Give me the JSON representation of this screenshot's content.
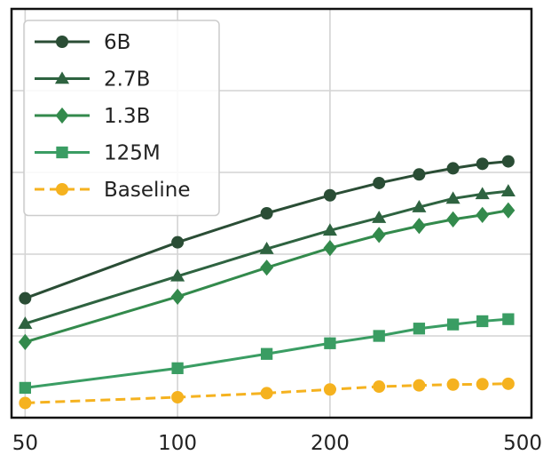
{
  "chart_data": {
    "type": "line",
    "xscale": "log",
    "xlim": [
      47,
      500
    ],
    "x_ticks": [
      50,
      100,
      200,
      500
    ],
    "x_tick_labels": [
      "50",
      "100",
      "200",
      "500"
    ],
    "ylim": [
      0,
      100
    ],
    "y_gridlines": [
      20,
      40,
      60,
      80
    ],
    "grid": true,
    "legend_position": "top-left",
    "series": [
      {
        "name": "6B",
        "color": "#2a4d35",
        "marker": "circle",
        "dash": "solid",
        "points": [
          [
            50,
            29.2
          ],
          [
            100,
            42.9
          ],
          [
            150,
            50.0
          ],
          [
            200,
            54.4
          ],
          [
            250,
            57.4
          ],
          [
            300,
            59.5
          ],
          [
            350,
            61.0
          ],
          [
            400,
            62.1
          ],
          [
            450,
            62.7
          ]
        ]
      },
      {
        "name": "2.7B",
        "color": "#2e6340",
        "marker": "triangle",
        "dash": "solid",
        "points": [
          [
            50,
            23.0
          ],
          [
            100,
            34.6
          ],
          [
            150,
            41.3
          ],
          [
            200,
            45.8
          ],
          [
            250,
            48.9
          ],
          [
            300,
            51.5
          ],
          [
            350,
            53.6
          ],
          [
            400,
            54.7
          ],
          [
            450,
            55.4
          ]
        ]
      },
      {
        "name": "1.3B",
        "color": "#338a4c",
        "marker": "diamond",
        "dash": "solid",
        "points": [
          [
            50,
            18.5
          ],
          [
            100,
            29.6
          ],
          [
            150,
            36.7
          ],
          [
            200,
            41.5
          ],
          [
            250,
            44.7
          ],
          [
            300,
            46.9
          ],
          [
            350,
            48.5
          ],
          [
            400,
            49.6
          ],
          [
            450,
            50.7
          ]
        ]
      },
      {
        "name": "125M",
        "color": "#3a9d63",
        "marker": "square",
        "dash": "solid",
        "points": [
          [
            50,
            7.3
          ],
          [
            100,
            12.1
          ],
          [
            150,
            15.6
          ],
          [
            200,
            18.2
          ],
          [
            250,
            20.0
          ],
          [
            300,
            21.8
          ],
          [
            350,
            22.8
          ],
          [
            400,
            23.6
          ],
          [
            450,
            24.1
          ]
        ]
      },
      {
        "name": "Baseline",
        "color": "#f5b21f",
        "marker": "circle",
        "dash": "dashed",
        "points": [
          [
            50,
            3.6
          ],
          [
            100,
            5.0
          ],
          [
            150,
            6.0
          ],
          [
            200,
            6.9
          ],
          [
            250,
            7.6
          ],
          [
            300,
            7.9
          ],
          [
            350,
            8.1
          ],
          [
            400,
            8.2
          ],
          [
            450,
            8.3
          ]
        ]
      }
    ]
  }
}
